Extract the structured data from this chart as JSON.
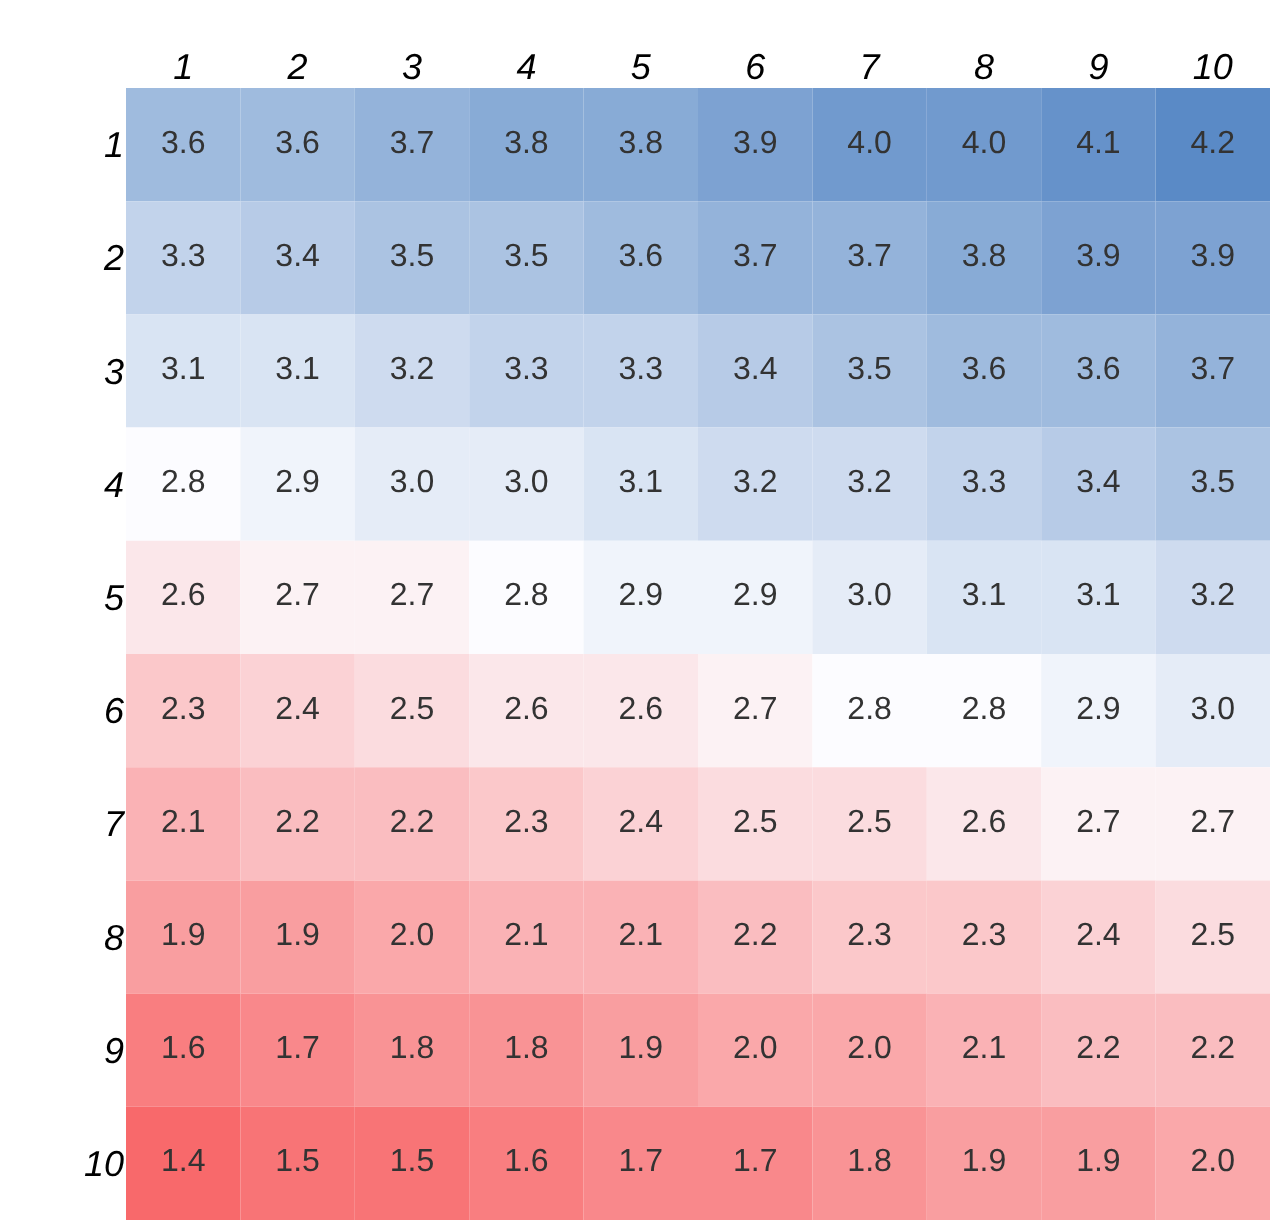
{
  "chart_data": {
    "type": "heatmap",
    "categories": [
      "1",
      "2",
      "3",
      "4",
      "5",
      "6",
      "7",
      "8",
      "9",
      "10"
    ],
    "y_categories": [
      "1",
      "2",
      "3",
      "4",
      "5",
      "6",
      "7",
      "8",
      "9",
      "10"
    ],
    "cells": [
      [
        3.6,
        3.6,
        3.7,
        3.8,
        3.8,
        3.9,
        4.0,
        4.0,
        4.1,
        4.2
      ],
      [
        3.3,
        3.4,
        3.5,
        3.5,
        3.6,
        3.7,
        3.7,
        3.8,
        3.9,
        3.9
      ],
      [
        3.1,
        3.1,
        3.2,
        3.3,
        3.3,
        3.4,
        3.5,
        3.6,
        3.6,
        3.7
      ],
      [
        2.8,
        2.9,
        3.0,
        3.0,
        3.1,
        3.2,
        3.2,
        3.3,
        3.4,
        3.5
      ],
      [
        2.6,
        2.7,
        2.7,
        2.8,
        2.9,
        2.9,
        3.0,
        3.1,
        3.1,
        3.2
      ],
      [
        2.3,
        2.4,
        2.5,
        2.6,
        2.6,
        2.7,
        2.8,
        2.8,
        2.9,
        3.0
      ],
      [
        2.1,
        2.2,
        2.2,
        2.3,
        2.4,
        2.5,
        2.5,
        2.6,
        2.7,
        2.7
      ],
      [
        1.9,
        1.9,
        2.0,
        2.1,
        2.1,
        2.2,
        2.3,
        2.3,
        2.4,
        2.5
      ],
      [
        1.6,
        1.7,
        1.8,
        1.8,
        1.9,
        2.0,
        2.0,
        2.1,
        2.2,
        2.2
      ],
      [
        1.4,
        1.5,
        1.5,
        1.6,
        1.7,
        1.7,
        1.8,
        1.9,
        1.9,
        2.0
      ]
    ],
    "cell_labels": [
      [
        "3.6",
        "3.6",
        "3.7",
        "3.8",
        "3.8",
        "3.9",
        "4.0",
        "4.0",
        "4.1",
        "4.2"
      ],
      [
        "3.3",
        "3.4",
        "3.5",
        "3.5",
        "3.6",
        "3.7",
        "3.7",
        "3.8",
        "3.9",
        "3.9"
      ],
      [
        "3.1",
        "3.1",
        "3.2",
        "3.3",
        "3.3",
        "3.4",
        "3.5",
        "3.6",
        "3.6",
        "3.7"
      ],
      [
        "2.8",
        "2.9",
        "3.0",
        "3.0",
        "3.1",
        "3.2",
        "3.2",
        "3.3",
        "3.4",
        "3.5"
      ],
      [
        "2.6",
        "2.7",
        "2.7",
        "2.8",
        "2.9",
        "2.9",
        "3.0",
        "3.1",
        "3.1",
        "3.2"
      ],
      [
        "2.3",
        "2.4",
        "2.5",
        "2.6",
        "2.6",
        "2.7",
        "2.8",
        "2.8",
        "2.9",
        "3.0"
      ],
      [
        "2.1",
        "2.2",
        "2.2",
        "2.3",
        "2.4",
        "2.5",
        "2.5",
        "2.6",
        "2.7",
        "2.7"
      ],
      [
        "1.9",
        "1.9",
        "2.0",
        "2.1",
        "2.1",
        "2.2",
        "2.3",
        "2.3",
        "2.4",
        "2.5"
      ],
      [
        "1.6",
        "1.7",
        "1.8",
        "1.8",
        "1.9",
        "2.0",
        "2.0",
        "2.1",
        "2.2",
        "2.2"
      ],
      [
        "1.4",
        "1.5",
        "1.5",
        "1.6",
        "1.7",
        "1.7",
        "1.8",
        "1.9",
        "1.9",
        "2.0"
      ]
    ]
  }
}
